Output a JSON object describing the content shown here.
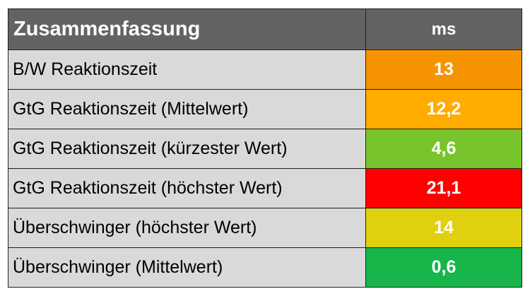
{
  "table": {
    "header": {
      "label": "Zusammenfassung",
      "unit": "ms"
    },
    "rows": [
      {
        "label": "B/W Reaktionszeit",
        "value": "13",
        "color": "#f59400"
      },
      {
        "label": "GtG Reaktionszeit (Mittelwert)",
        "value": "12,2",
        "color": "#ffab00"
      },
      {
        "label": "GtG Reaktionszeit (kürzester Wert)",
        "value": "4,6",
        "color": "#78c42c"
      },
      {
        "label": "GtG Reaktionszeit (höchster Wert)",
        "value": "21,1",
        "color": "#ff0000"
      },
      {
        "label": "Überschwinger (höchster Wert)",
        "value": "14",
        "color": "#e1d010"
      },
      {
        "label": "Überschwinger (Mittelwert)",
        "value": "0,6",
        "color": "#17b54a"
      }
    ]
  }
}
